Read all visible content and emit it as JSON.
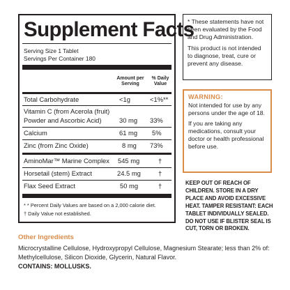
{
  "facts": {
    "title": "Supplement Facts",
    "serving_size": "Serving Size 1 Tablet",
    "servings_per_container": "Servings Per Container 180",
    "col_amount": "Amount per Serving",
    "col_dv": "% Daily Value",
    "rows": [
      {
        "name": "Total Carbohydrate",
        "amount": "<1g",
        "dv": "<1%**"
      },
      {
        "name": "Vitamin C (from Acerola (fruit)",
        "name2": "Powder and Ascorbic Acid)",
        "amount": "30 mg",
        "dv": "33%"
      },
      {
        "name": "Calcium",
        "amount": "61 mg",
        "dv": "5%"
      },
      {
        "name": "Zinc (from Zinc Oxide)",
        "amount": "8 mg",
        "dv": "73%"
      },
      {
        "name": "AminoMar™ Marine Complex",
        "amount": "545 mg",
        "dv": "†"
      },
      {
        "name": "Horsetail (stem) Extract",
        "amount": "24.5 mg",
        "dv": "†"
      },
      {
        "name": "Flax Seed Extract",
        "amount": "50 mg",
        "dv": "†"
      }
    ],
    "footnote1": "* * Percent Daily Values are based on a 2,000 calorie diet.",
    "footnote2": "† Daily Value not established."
  },
  "disclaimer": {
    "line1": "* These statements have not been evaluated by the Food and Drug Administration.",
    "line2": "This product is not intended to diagnose, treat, cure or prevent any disease."
  },
  "warning": {
    "title": "WARNING:",
    "text1": "Not intended for use by any persons under the age of 18.",
    "text2": "If you are taking any medications, consult your doctor or health professional before use."
  },
  "storage": "KEEP OUT OF REACH OF CHILDREN. STORE IN A DRY PLACE AND AVOID EXCESSIVE HEAT. TAMPER RESISTANT: EACH TABLET INDIVIDUALLY SEALED. DO NOT USE IF BLISTER SEAL IS CUT, TORN OR BROKEN.",
  "other": {
    "title": "Other Ingredients",
    "text": "Microcrystalline Cellulose, Hydroxypropyl Cellulose, Magnesium Stearate; less than 2% of: Methylcellulose, Silicon Dioxide, Glycerin, Natural Flavor.",
    "contains": "CONTAINS: MOLLUSKS."
  },
  "colors": {
    "accent": "#d98c4a",
    "text": "#231f20"
  }
}
